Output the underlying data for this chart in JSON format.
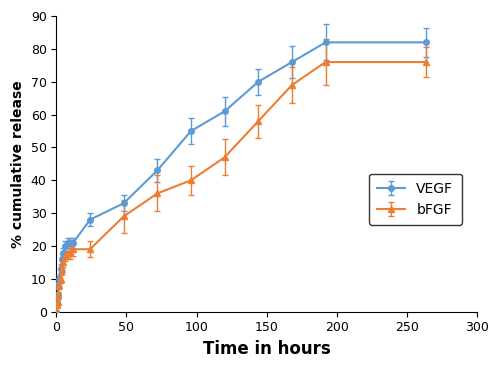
{
  "vegf_x": [
    0,
    0.5,
    1,
    1.5,
    2,
    3,
    4,
    5,
    6,
    8,
    10,
    12,
    24,
    48,
    72,
    96,
    120,
    144,
    168,
    192,
    264
  ],
  "vegf_y": [
    0,
    3,
    5,
    8,
    10,
    13,
    16,
    18,
    20,
    21,
    21,
    21,
    28,
    33,
    43,
    55,
    61,
    70,
    76,
    82,
    82
  ],
  "vegf_err": [
    0.3,
    0.5,
    0.8,
    1.0,
    1.0,
    1.2,
    1.5,
    1.5,
    1.5,
    1.5,
    1.5,
    1.5,
    2.0,
    2.5,
    3.5,
    4.0,
    4.5,
    4.0,
    5.0,
    5.5,
    4.5
  ],
  "bfgf_x": [
    0,
    0.5,
    1,
    1.5,
    2,
    3,
    4,
    5,
    6,
    8,
    10,
    12,
    24,
    48,
    72,
    96,
    120,
    144,
    168,
    192,
    264
  ],
  "bfgf_y": [
    0,
    2,
    3,
    5,
    8,
    10,
    13,
    15,
    17,
    18,
    18,
    19,
    19,
    29,
    36,
    40,
    47,
    58,
    69,
    76,
    76
  ],
  "bfgf_err": [
    0.3,
    0.5,
    0.8,
    1.0,
    1.0,
    1.2,
    1.5,
    1.5,
    1.5,
    2.0,
    2.0,
    2.0,
    2.5,
    5.0,
    5.5,
    4.5,
    5.5,
    5.0,
    5.5,
    7.0,
    4.5
  ],
  "vegf_color": "#5b9bd5",
  "bfgf_color": "#ed7d31",
  "xlabel": "Time in hours",
  "ylabel": "% cumulative release",
  "xlim": [
    0,
    300
  ],
  "ylim": [
    0,
    90
  ],
  "xticks": [
    0,
    50,
    100,
    150,
    200,
    250,
    300
  ],
  "yticks": [
    0,
    10,
    20,
    30,
    40,
    50,
    60,
    70,
    80,
    90
  ],
  "vegf_label": "VEGF",
  "bfgf_label": "bFGF",
  "vegf_marker": "o",
  "bfgf_marker": "^"
}
